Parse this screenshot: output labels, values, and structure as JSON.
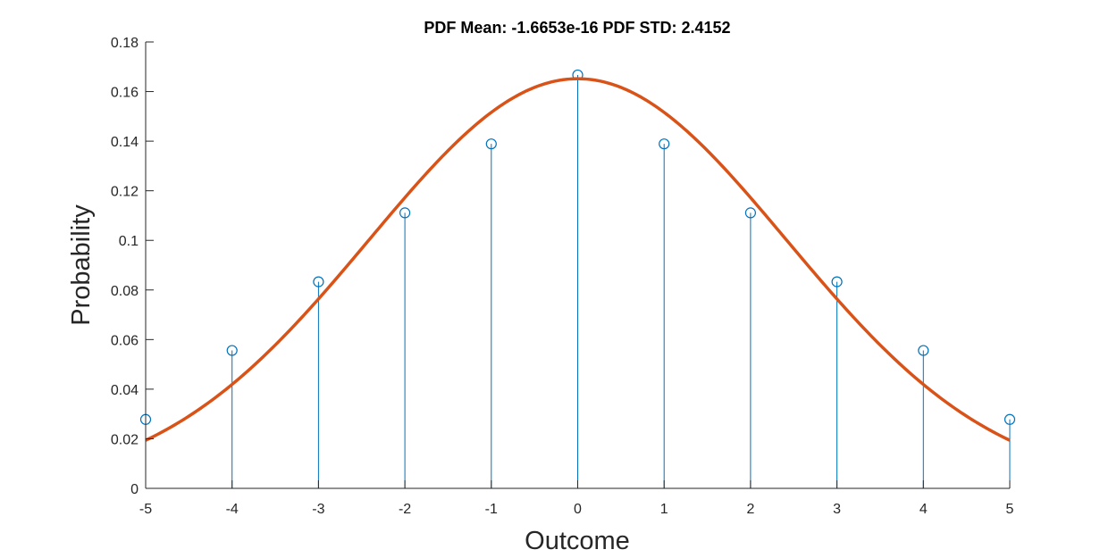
{
  "chart_data": {
    "type": "stem",
    "title": "PDF Mean: -1.6653e-16  PDF STD: 2.4152",
    "xlabel": "Outcome",
    "ylabel": "Probability",
    "xlim": [
      -5,
      5
    ],
    "ylim": [
      0,
      0.18
    ],
    "x_ticks": [
      "-5",
      "-4",
      "-3",
      "-2",
      "-1",
      "0",
      "1",
      "2",
      "3",
      "4",
      "5"
    ],
    "y_ticks": [
      "0",
      "0.02",
      "0.04",
      "0.06",
      "0.08",
      "0.1",
      "0.12",
      "0.14",
      "0.16",
      "0.18"
    ],
    "grid": false,
    "series": [
      {
        "kind": "stem",
        "marker": "circle",
        "color": "#0072BD",
        "x": [
          -5,
          -4,
          -3,
          -2,
          -1,
          0,
          1,
          2,
          3,
          4,
          5
        ],
        "values": [
          0.0278,
          0.0556,
          0.0833,
          0.1111,
          0.1389,
          0.1667,
          0.1389,
          0.1111,
          0.0833,
          0.0556,
          0.0278
        ]
      },
      {
        "kind": "line",
        "color": "#D95319",
        "curve": "normal_pdf",
        "mean": -1.6653e-16,
        "std": 2.4152
      }
    ]
  }
}
